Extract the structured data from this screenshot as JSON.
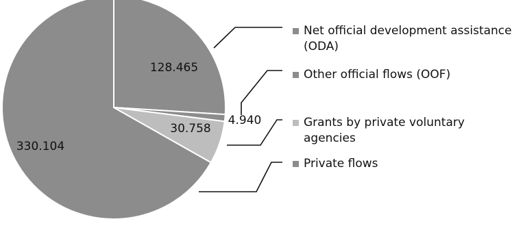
{
  "chart_data": {
    "type": "pie",
    "title": "",
    "slices": [
      {
        "label": "Net official development assistance (ODA)",
        "legend_lines": [
          "Net official development assistance",
          "(ODA)"
        ],
        "value": 128.465,
        "value_label": "128.465",
        "color": "#8c8c8c",
        "legend_color": "#8c8c8c"
      },
      {
        "label": "Other official flows (OOF)",
        "legend_lines": [
          "Other official flows (OOF)"
        ],
        "value": 4.94,
        "value_label": "4.940",
        "color": "#8c8c8c",
        "legend_color": "#8c8c8c"
      },
      {
        "label": "Grants by private voluntary agencies",
        "legend_lines": [
          "Grants by private voluntary",
          "agencies"
        ],
        "value": 30.758,
        "value_label": "30.758",
        "color": "#bdbdbd",
        "legend_color": "#bdbdbd"
      },
      {
        "label": "Private flows",
        "legend_lines": [
          "Private flows"
        ],
        "value": 330.104,
        "value_label": "330.104",
        "color": "#8c8c8c",
        "legend_color": "#8c8c8c"
      }
    ],
    "start_angle": "12 o'clock",
    "direction": "clockwise",
    "legend_placement": "right"
  }
}
